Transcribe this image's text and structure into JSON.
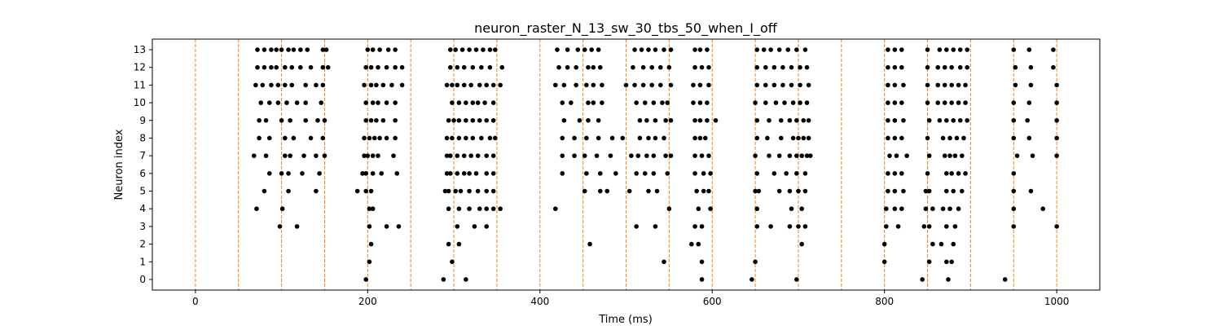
{
  "chart_data": {
    "type": "scatter",
    "title": "neuron_raster_N_13_sw_30_tbs_50_when_I_off",
    "xlabel": "Time (ms)",
    "ylabel": "Neuron index",
    "xlim": [
      -50,
      1050
    ],
    "ylim": [
      -0.6,
      13.6
    ],
    "x_ticks": [
      0,
      200,
      400,
      600,
      800,
      1000
    ],
    "x_tick_labels": [
      "0",
      "200",
      "400",
      "600",
      "800",
      "1000"
    ],
    "y_ticks": [
      0,
      1,
      2,
      3,
      4,
      5,
      6,
      7,
      8,
      9,
      10,
      11,
      12,
      13
    ],
    "y_tick_labels": [
      "0",
      "1",
      "2",
      "3",
      "4",
      "5",
      "6",
      "7",
      "8",
      "9",
      "10",
      "11",
      "12",
      "13"
    ],
    "grid": false,
    "marker_color": "#000000",
    "vline_color": "#ff7f0e",
    "vlines": [
      0,
      50,
      100,
      150,
      200,
      250,
      300,
      350,
      400,
      450,
      500,
      550,
      600,
      650,
      700,
      750,
      800,
      850,
      900,
      950,
      1000
    ],
    "spikes": [
      {
        "neuron": 0,
        "times": [
          198,
          288,
          314,
          588,
          646,
          698,
          844,
          874,
          940
        ]
      },
      {
        "neuron": 1,
        "times": [
          202,
          298,
          544,
          588,
          650,
          800,
          852,
          872,
          878
        ]
      },
      {
        "neuron": 2,
        "times": [
          204,
          294,
          306,
          458,
          576,
          584,
          704,
          800,
          856,
          866,
          880
        ]
      },
      {
        "neuron": 3,
        "times": [
          98,
          118,
          202,
          222,
          236,
          304,
          324,
          338,
          512,
          534,
          580,
          588,
          652,
          668,
          690,
          700,
          708,
          802,
          816,
          846,
          852,
          872,
          882,
          950,
          1000
        ]
      },
      {
        "neuron": 4,
        "times": [
          71,
          101,
          202,
          206,
          294,
          306,
          318,
          330,
          338,
          346,
          354,
          418,
          550,
          584,
          598,
          652,
          692,
          704,
          802,
          812,
          820,
          848,
          856,
          868,
          876,
          886,
          950,
          984
        ]
      },
      {
        "neuron": 5,
        "times": [
          80,
          108,
          140,
          188,
          198,
          204,
          290,
          294,
          302,
          308,
          318,
          328,
          338,
          346,
          452,
          470,
          478,
          504,
          526,
          536,
          582,
          590,
          596,
          650,
          654,
          678,
          690,
          700,
          708,
          804,
          812,
          822,
          848,
          852,
          872,
          880,
          890,
          950,
          970
        ]
      },
      {
        "neuron": 6,
        "times": [
          86,
          100,
          108,
          124,
          144,
          194,
          198,
          206,
          216,
          234,
          292,
          296,
          304,
          312,
          318,
          326,
          338,
          346,
          426,
          454,
          470,
          488,
          512,
          522,
          532,
          548,
          580,
          590,
          598,
          652,
          672,
          686,
          698,
          708,
          804,
          812,
          820,
          850,
          872,
          878,
          886,
          894,
          950
        ]
      },
      {
        "neuron": 7,
        "times": [
          68,
          82,
          104,
          110,
          126,
          140,
          150,
          196,
          200,
          206,
          212,
          230,
          292,
          296,
          304,
          312,
          320,
          328,
          338,
          346,
          426,
          440,
          452,
          466,
          482,
          506,
          514,
          524,
          532,
          546,
          552,
          580,
          588,
          596,
          650,
          666,
          678,
          690,
          698,
          704,
          710,
          714,
          806,
          814,
          826,
          852,
          870,
          876,
          882,
          890,
          954,
          972,
          1000
        ]
      },
      {
        "neuron": 8,
        "times": [
          74,
          86,
          104,
          114,
          134,
          148,
          196,
          202,
          208,
          214,
          222,
          232,
          292,
          298,
          306,
          314,
          322,
          332,
          342,
          348,
          426,
          440,
          454,
          468,
          484,
          496,
          516,
          526,
          534,
          544,
          580,
          586,
          592,
          652,
          664,
          680,
          694,
          700,
          706,
          712,
          804,
          812,
          820,
          850,
          868,
          876,
          884,
          892,
          950,
          968,
          1000
        ]
      },
      {
        "neuron": 9,
        "times": [
          74,
          82,
          100,
          110,
          128,
          142,
          150,
          198,
          204,
          210,
          218,
          232,
          294,
          300,
          306,
          314,
          322,
          330,
          338,
          346,
          428,
          446,
          456,
          468,
          516,
          524,
          534,
          546,
          552,
          580,
          586,
          594,
          604,
          652,
          666,
          680,
          690,
          698,
          706,
          712,
          804,
          812,
          822,
          852,
          864,
          872,
          880,
          888,
          896,
          950,
          966,
          1000
        ]
      },
      {
        "neuron": 10,
        "times": [
          76,
          86,
          96,
          106,
          118,
          128,
          146,
          198,
          206,
          212,
          222,
          232,
          298,
          306,
          314,
          322,
          328,
          336,
          346,
          426,
          436,
          456,
          462,
          472,
          512,
          522,
          532,
          542,
          548,
          578,
          586,
          594,
          650,
          662,
          674,
          684,
          694,
          702,
          710,
          804,
          812,
          820,
          850,
          862,
          870,
          878,
          886,
          894,
          950,
          968,
          1000
        ]
      },
      {
        "neuron": 11,
        "times": [
          70,
          78,
          88,
          96,
          104,
          112,
          128,
          140,
          148,
          196,
          204,
          210,
          218,
          228,
          240,
          292,
          298,
          304,
          312,
          320,
          330,
          338,
          346,
          354,
          418,
          428,
          442,
          454,
          462,
          472,
          500,
          510,
          520,
          530,
          540,
          552,
          578,
          586,
          596,
          652,
          662,
          672,
          682,
          692,
          702,
          712,
          804,
          812,
          822,
          850,
          862,
          870,
          878,
          886,
          894,
          952,
          970,
          1000
        ]
      },
      {
        "neuron": 12,
        "times": [
          72,
          80,
          88,
          94,
          104,
          112,
          122,
          134,
          148,
          154,
          198,
          204,
          212,
          222,
          232,
          240,
          296,
          304,
          312,
          322,
          332,
          342,
          356,
          422,
          432,
          442,
          456,
          462,
          470,
          508,
          520,
          530,
          540,
          550,
          580,
          588,
          596,
          652,
          662,
          672,
          682,
          692,
          702,
          710,
          804,
          812,
          820,
          850,
          862,
          870,
          878,
          888,
          896,
          952,
          970,
          996
        ]
      },
      {
        "neuron": 13,
        "times": [
          72,
          80,
          88,
          94,
          100,
          108,
          114,
          122,
          130,
          148,
          152,
          200,
          206,
          214,
          224,
          232,
          296,
          302,
          310,
          318,
          326,
          334,
          342,
          348,
          420,
          432,
          444,
          452,
          460,
          468,
          510,
          518,
          526,
          534,
          544,
          552,
          580,
          586,
          594,
          652,
          660,
          668,
          678,
          688,
          698,
          708,
          804,
          812,
          820,
          850,
          864,
          872,
          880,
          888,
          896,
          950,
          968,
          996
        ]
      }
    ]
  }
}
